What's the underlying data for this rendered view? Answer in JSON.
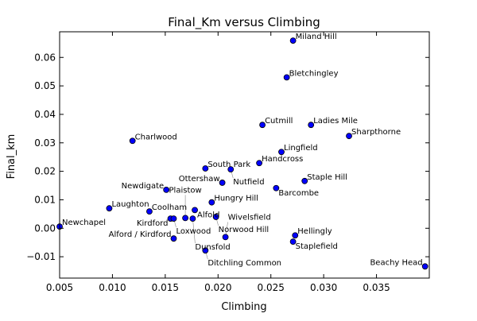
{
  "chart_data": {
    "type": "scatter",
    "title": "Final_Km versus Climbing",
    "xlabel": "Climbing",
    "ylabel": "Final_km",
    "xlim": [
      0.005,
      0.04
    ],
    "ylim": [
      -0.0175,
      0.069
    ],
    "xticks": [
      "0.005",
      "0.010",
      "0.015",
      "0.020",
      "0.025",
      "0.030",
      "0.035"
    ],
    "yticks": [
      "0.06",
      "0.05",
      "0.04",
      "0.03",
      "0.02",
      "0.01",
      "0.00",
      "−0.01"
    ],
    "xtick_values": [
      0.005,
      0.01,
      0.015,
      0.02,
      0.025,
      0.03,
      0.035
    ],
    "ytick_values": [
      0.06,
      0.05,
      0.04,
      0.03,
      0.02,
      0.01,
      0.0,
      -0.01
    ],
    "grid": false,
    "marker_color": "#0000ff",
    "points": [
      {
        "label": "Miland Hill",
        "x": 0.0271,
        "y": 0.0659
      },
      {
        "label": "Bletchingley",
        "x": 0.0265,
        "y": 0.053
      },
      {
        "label": "Cutmill",
        "x": 0.0242,
        "y": 0.0363
      },
      {
        "label": "Ladies Mile",
        "x": 0.0288,
        "y": 0.0363
      },
      {
        "label": "Sharpthorne",
        "x": 0.0324,
        "y": 0.0324
      },
      {
        "label": "Charlwood",
        "x": 0.0119,
        "y": 0.0307
      },
      {
        "label": "Lingfield",
        "x": 0.026,
        "y": 0.0268
      },
      {
        "label": "Handcross",
        "x": 0.0239,
        "y": 0.0229
      },
      {
        "label": "South Park",
        "x": 0.0188,
        "y": 0.021
      },
      {
        "label": "Nutfield",
        "x": 0.0212,
        "y": 0.0207
      },
      {
        "label": "Ottershaw",
        "x": 0.0204,
        "y": 0.016
      },
      {
        "label": "Staple Hill",
        "x": 0.0282,
        "y": 0.0166
      },
      {
        "label": "Barcombe",
        "x": 0.0255,
        "y": 0.0141
      },
      {
        "label": "Newdigate",
        "x": 0.0151,
        "y": 0.0135
      },
      {
        "label": "Hungry Hill",
        "x": 0.0194,
        "y": 0.0091
      },
      {
        "label": "Laughton",
        "x": 0.0097,
        "y": 0.007
      },
      {
        "label": "Coolham",
        "x": 0.0135,
        "y": 0.0059
      },
      {
        "label": "Alfold",
        "x": 0.0178,
        "y": 0.0064
      },
      {
        "label": "Kirdford",
        "x": 0.0155,
        "y": 0.0034
      },
      {
        "label": "Loxwood",
        "x": 0.0158,
        "y": 0.0034
      },
      {
        "label": "Plaistow",
        "x": 0.0169,
        "y": 0.0036
      },
      {
        "label": "Dunsfold",
        "x": 0.0176,
        "y": 0.0034
      },
      {
        "label": "Norwood Hill",
        "x": 0.0198,
        "y": 0.004
      },
      {
        "label": "Newchapel",
        "x": 0.005,
        "y": 0.0006
      },
      {
        "label": "Alford / Kirdford",
        "x": 0.0158,
        "y": -0.0036
      },
      {
        "label": "Wivelsfield",
        "x": 0.0207,
        "y": -0.0031
      },
      {
        "label": "Hellingly",
        "x": 0.0273,
        "y": -0.0025
      },
      {
        "label": "Staplefield",
        "x": 0.0271,
        "y": -0.0047
      },
      {
        "label": "Ditchling Common",
        "x": 0.0188,
        "y": -0.0078
      },
      {
        "label": "Beachy Head",
        "x": 0.0396,
        "y": -0.0134
      }
    ]
  }
}
